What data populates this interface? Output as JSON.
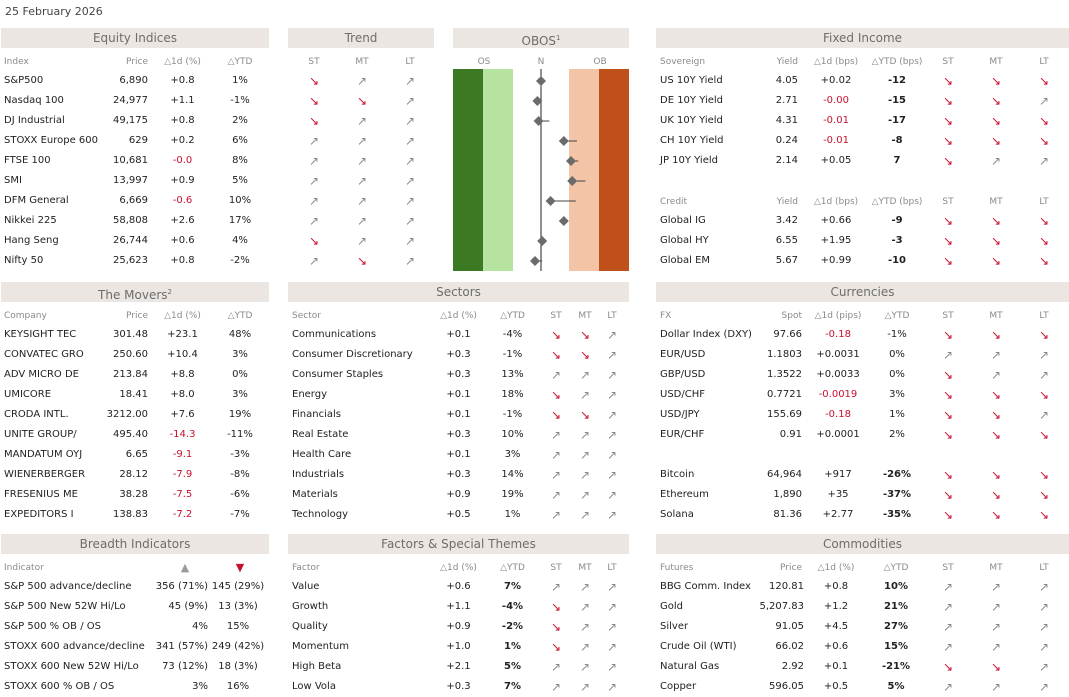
{
  "date": "25 February 2026",
  "colors": {
    "negative": "#c8102e",
    "header_bg": "#ebe6e1",
    "os_dark": "#3b7a22",
    "os_light": "#b7e3a1",
    "ob_light": "#f4c4a6",
    "ob_dark": "#c0501a"
  },
  "equity": {
    "title": "Equity Indices",
    "headers": [
      "Index",
      "Price",
      "△1d (%)",
      "△YTD"
    ],
    "rows": [
      {
        "name": "S&P500",
        "price": "6,890",
        "d1": "+0.8",
        "ytd": "1%",
        "st": "down",
        "mt": "up",
        "lt": "up"
      },
      {
        "name": "Nasdaq 100",
        "price": "24,977",
        "d1": "+1.1",
        "ytd": "-1%",
        "st": "down",
        "mt": "down",
        "lt": "up"
      },
      {
        "name": "DJ Industrial",
        "price": "49,175",
        "d1": "+0.8",
        "ytd": "2%",
        "st": "down",
        "mt": "up",
        "lt": "up"
      },
      {
        "name": "STOXX Europe 600",
        "price": "629",
        "d1": "+0.2",
        "ytd": "6%",
        "st": "up",
        "mt": "up",
        "lt": "up"
      },
      {
        "name": "FTSE 100",
        "price": "10,681",
        "d1": "-0.0",
        "ytd": "8%",
        "st": "up",
        "mt": "up",
        "lt": "up"
      },
      {
        "name": "SMI",
        "price": "13,997",
        "d1": "+0.9",
        "ytd": "5%",
        "st": "up",
        "mt": "up",
        "lt": "up"
      },
      {
        "name": "DFM General",
        "price": "6,669",
        "d1": "-0.6",
        "ytd": "10%",
        "st": "up",
        "mt": "up",
        "lt": "up"
      },
      {
        "name": "Nikkei 225",
        "price": "58,808",
        "d1": "+2.6",
        "ytd": "17%",
        "st": "up",
        "mt": "up",
        "lt": "up"
      },
      {
        "name": "Hang Seng",
        "price": "26,744",
        "d1": "+0.6",
        "ytd": "4%",
        "st": "down",
        "mt": "up",
        "lt": "up"
      },
      {
        "name": "Nifty 50",
        "price": "25,623",
        "d1": "+0.8",
        "ytd": "-2%",
        "st": "up",
        "mt": "down",
        "lt": "up"
      }
    ]
  },
  "trend": {
    "title": "Trend",
    "headers": [
      "ST",
      "MT",
      "LT"
    ]
  },
  "obos": {
    "title": "OBOS",
    "sup": "1",
    "headers": [
      "OS",
      "N",
      "OB"
    ],
    "markers": [
      {
        "value": 0.0,
        "tail": 0.0
      },
      {
        "value": -0.15,
        "tail": 0.0
      },
      {
        "value": -0.1,
        "tail": 0.35
      },
      {
        "value": 0.95,
        "tail": 1.5
      },
      {
        "value": 1.25,
        "tail": 1.55
      },
      {
        "value": 1.3,
        "tail": 1.85
      },
      {
        "value": 0.4,
        "tail": 1.45
      },
      {
        "value": 0.95,
        "tail": 1.1
      },
      {
        "value": 0.05,
        "tail": 0.05
      },
      {
        "value": -0.25,
        "tail": 0.05
      }
    ]
  },
  "fixed": {
    "title": "Fixed Income",
    "sov_headers": [
      "Sovereign",
      "Yield",
      "△1d (bps)",
      "△YTD (bps)",
      "ST",
      "MT",
      "LT"
    ],
    "sov": [
      {
        "name": "US 10Y Yield",
        "yield": "4.05",
        "d1": "+0.02",
        "ytd": "-12",
        "st": "down",
        "mt": "down",
        "lt": "down"
      },
      {
        "name": "DE 10Y Yield",
        "yield": "2.71",
        "d1": "-0.00",
        "ytd": "-15",
        "st": "down",
        "mt": "down",
        "lt": "up"
      },
      {
        "name": "UK 10Y Yield",
        "yield": "4.31",
        "d1": "-0.01",
        "ytd": "-17",
        "st": "down",
        "mt": "down",
        "lt": "down"
      },
      {
        "name": "CH 10Y Yield",
        "yield": "0.24",
        "d1": "-0.01",
        "ytd": "-8",
        "st": "down",
        "mt": "down",
        "lt": "down"
      },
      {
        "name": "JP 10Y Yield",
        "yield": "2.14",
        "d1": "+0.05",
        "ytd": "7",
        "st": "down",
        "mt": "up",
        "lt": "up"
      }
    ],
    "credit_headers": [
      "Credit",
      "Yield",
      "△1d (bps)",
      "△YTD (bps)",
      "ST",
      "MT",
      "LT"
    ],
    "credit": [
      {
        "name": "Global IG",
        "yield": "3.42",
        "d1": "+0.66",
        "ytd": "-9",
        "st": "down",
        "mt": "down",
        "lt": "down"
      },
      {
        "name": "Global HY",
        "yield": "6.55",
        "d1": "+1.95",
        "ytd": "-3",
        "st": "down",
        "mt": "down",
        "lt": "down"
      },
      {
        "name": "Global EM",
        "yield": "5.67",
        "d1": "+0.99",
        "ytd": "-10",
        "st": "down",
        "mt": "down",
        "lt": "down"
      }
    ]
  },
  "movers": {
    "title": "The Movers",
    "sup": "2",
    "headers": [
      "Company",
      "Price",
      "△1d (%)",
      "△YTD"
    ],
    "rows": [
      {
        "name": "KEYSIGHT TEC",
        "price": "301.48",
        "d1": "+23.1",
        "ytd": "48%"
      },
      {
        "name": "CONVATEC GRO",
        "price": "250.60",
        "d1": "+10.4",
        "ytd": "3%"
      },
      {
        "name": "ADV MICRO DE",
        "price": "213.84",
        "d1": "+8.8",
        "ytd": "0%"
      },
      {
        "name": "UMICORE",
        "price": "18.41",
        "d1": "+8.0",
        "ytd": "3%"
      },
      {
        "name": "CRODA INTL.",
        "price": "3212.00",
        "d1": "+7.6",
        "ytd": "19%"
      },
      {
        "name": "UNITE GROUP/",
        "price": "495.40",
        "d1": "-14.3",
        "ytd": "-11%"
      },
      {
        "name": "MANDATUM OYJ",
        "price": "6.65",
        "d1": "-9.1",
        "ytd": "-3%"
      },
      {
        "name": "WIENERBERGER",
        "price": "28.12",
        "d1": "-7.9",
        "ytd": "-8%"
      },
      {
        "name": "FRESENIUS ME",
        "price": "38.28",
        "d1": "-7.5",
        "ytd": "-6%"
      },
      {
        "name": "EXPEDITORS I",
        "price": "138.83",
        "d1": "-7.2",
        "ytd": "-7%"
      }
    ]
  },
  "sectors": {
    "title": "Sectors",
    "headers": [
      "Sector",
      "△1d (%)",
      "△YTD",
      "ST",
      "MT",
      "LT"
    ],
    "rows": [
      {
        "name": "Communications",
        "d1": "+0.1",
        "ytd": "-4%",
        "st": "down",
        "mt": "down",
        "lt": "up"
      },
      {
        "name": "Consumer Discretionary",
        "d1": "+0.3",
        "ytd": "-1%",
        "st": "down",
        "mt": "down",
        "lt": "up"
      },
      {
        "name": "Consumer Staples",
        "d1": "+0.3",
        "ytd": "13%",
        "st": "up",
        "mt": "up",
        "lt": "up"
      },
      {
        "name": "Energy",
        "d1": "+0.1",
        "ytd": "18%",
        "st": "down",
        "mt": "up",
        "lt": "up"
      },
      {
        "name": "Financials",
        "d1": "+0.1",
        "ytd": "-1%",
        "st": "down",
        "mt": "down",
        "lt": "up"
      },
      {
        "name": "Real Estate",
        "d1": "+0.3",
        "ytd": "10%",
        "st": "up",
        "mt": "up",
        "lt": "up"
      },
      {
        "name": "Health Care",
        "d1": "+0.1",
        "ytd": "3%",
        "st": "up",
        "mt": "up",
        "lt": "up"
      },
      {
        "name": "Industrials",
        "d1": "+0.3",
        "ytd": "14%",
        "st": "up",
        "mt": "up",
        "lt": "up"
      },
      {
        "name": "Materials",
        "d1": "+0.9",
        "ytd": "19%",
        "st": "up",
        "mt": "up",
        "lt": "up"
      },
      {
        "name": "Technology",
        "d1": "+0.5",
        "ytd": "1%",
        "st": "up",
        "mt": "up",
        "lt": "up"
      }
    ]
  },
  "currencies": {
    "title": "Currencies",
    "headers": [
      "FX",
      "Spot",
      "△1d (pips)",
      "△YTD",
      "ST",
      "MT",
      "LT"
    ],
    "fx": [
      {
        "name": "Dollar Index (DXY)",
        "spot": "97.66",
        "d1": "-0.18",
        "ytd": "-1%",
        "st": "down",
        "mt": "down",
        "lt": "down"
      },
      {
        "name": "EUR/USD",
        "spot": "1.1803",
        "d1": "+0.0031",
        "ytd": "0%",
        "st": "up",
        "mt": "up",
        "lt": "up"
      },
      {
        "name": "GBP/USD",
        "spot": "1.3522",
        "d1": "+0.0033",
        "ytd": "0%",
        "st": "down",
        "mt": "up",
        "lt": "up"
      },
      {
        "name": "USD/CHF",
        "spot": "0.7721",
        "d1": "-0.0019",
        "ytd": "3%",
        "st": "down",
        "mt": "down",
        "lt": "down"
      },
      {
        "name": "USD/JPY",
        "spot": "155.69",
        "d1": "-0.18",
        "ytd": "1%",
        "st": "down",
        "mt": "down",
        "lt": "up"
      },
      {
        "name": "EUR/CHF",
        "spot": "0.91",
        "d1": "+0.0001",
        "ytd": "2%",
        "st": "down",
        "mt": "down",
        "lt": "down"
      }
    ],
    "crypto": [
      {
        "name": "Bitcoin",
        "spot": "64,964",
        "d1": "+917",
        "ytd": "-26%",
        "st": "down",
        "mt": "down",
        "lt": "down"
      },
      {
        "name": "Ethereum",
        "spot": "1,890",
        "d1": "+35",
        "ytd": "-37%",
        "st": "down",
        "mt": "down",
        "lt": "down"
      },
      {
        "name": "Solana",
        "spot": "81.36",
        "d1": "+2.77",
        "ytd": "-35%",
        "st": "down",
        "mt": "down",
        "lt": "down"
      }
    ]
  },
  "breadth": {
    "title": "Breadth Indicators",
    "headers": [
      "Indicator",
      "▲",
      "▼"
    ],
    "rows": [
      {
        "name": "S&P 500 advance/decline",
        "up": "356 (71%)",
        "down": "145 (29%)"
      },
      {
        "name": "S&P 500 New 52W Hi/Lo",
        "up": "45 (9%)",
        "down": "13 (3%)"
      },
      {
        "name": "S&P 500 % OB / OS",
        "up": "4%",
        "down": "15%"
      },
      {
        "name": "STOXX 600 advance/decline",
        "up": "341 (57%)",
        "down": "249 (42%)"
      },
      {
        "name": "STOXX 600 New 52W Hi/Lo",
        "up": "73 (12%)",
        "down": "18 (3%)"
      },
      {
        "name": "STOXX 600 % OB / OS",
        "up": "3%",
        "down": "16%"
      }
    ]
  },
  "factors": {
    "title": "Factors & Special Themes",
    "headers": [
      "Factor",
      "△1d (%)",
      "△YTD",
      "ST",
      "MT",
      "LT"
    ],
    "rows": [
      {
        "name": "Value",
        "d1": "+0.6",
        "ytd": "7%",
        "st": "up",
        "mt": "up",
        "lt": "up"
      },
      {
        "name": "Growth",
        "d1": "+1.1",
        "ytd": "-4%",
        "st": "down",
        "mt": "up",
        "lt": "up"
      },
      {
        "name": "Quality",
        "d1": "+0.9",
        "ytd": "-2%",
        "st": "down",
        "mt": "up",
        "lt": "up"
      },
      {
        "name": "Momentum",
        "d1": "+1.0",
        "ytd": "1%",
        "st": "down",
        "mt": "up",
        "lt": "up"
      },
      {
        "name": "High Beta",
        "d1": "+2.1",
        "ytd": "5%",
        "st": "up",
        "mt": "up",
        "lt": "up"
      },
      {
        "name": "Low Vola",
        "d1": "+0.3",
        "ytd": "7%",
        "st": "up",
        "mt": "up",
        "lt": "up"
      }
    ]
  },
  "commodities": {
    "title": "Commodities",
    "headers": [
      "Futures",
      "Price",
      "△1d (%)",
      "△YTD",
      "ST",
      "MT",
      "LT"
    ],
    "rows": [
      {
        "name": "BBG Comm. Index",
        "price": "120.81",
        "d1": "+0.8",
        "ytd": "10%",
        "st": "up",
        "mt": "up",
        "lt": "up"
      },
      {
        "name": "Gold",
        "price": "5,207.83",
        "d1": "+1.2",
        "ytd": "21%",
        "st": "up",
        "mt": "up",
        "lt": "up"
      },
      {
        "name": "Silver",
        "price": "91.05",
        "d1": "+4.5",
        "ytd": "27%",
        "st": "up",
        "mt": "up",
        "lt": "up"
      },
      {
        "name": "Crude Oil (WTI)",
        "price": "66.02",
        "d1": "+0.6",
        "ytd": "15%",
        "st": "up",
        "mt": "up",
        "lt": "up"
      },
      {
        "name": "Natural Gas",
        "price": "2.92",
        "d1": "+0.1",
        "ytd": "-21%",
        "st": "down",
        "mt": "down",
        "lt": "up"
      },
      {
        "name": "Copper",
        "price": "596.05",
        "d1": "+0.5",
        "ytd": "5%",
        "st": "up",
        "mt": "up",
        "lt": "up"
      }
    ]
  }
}
